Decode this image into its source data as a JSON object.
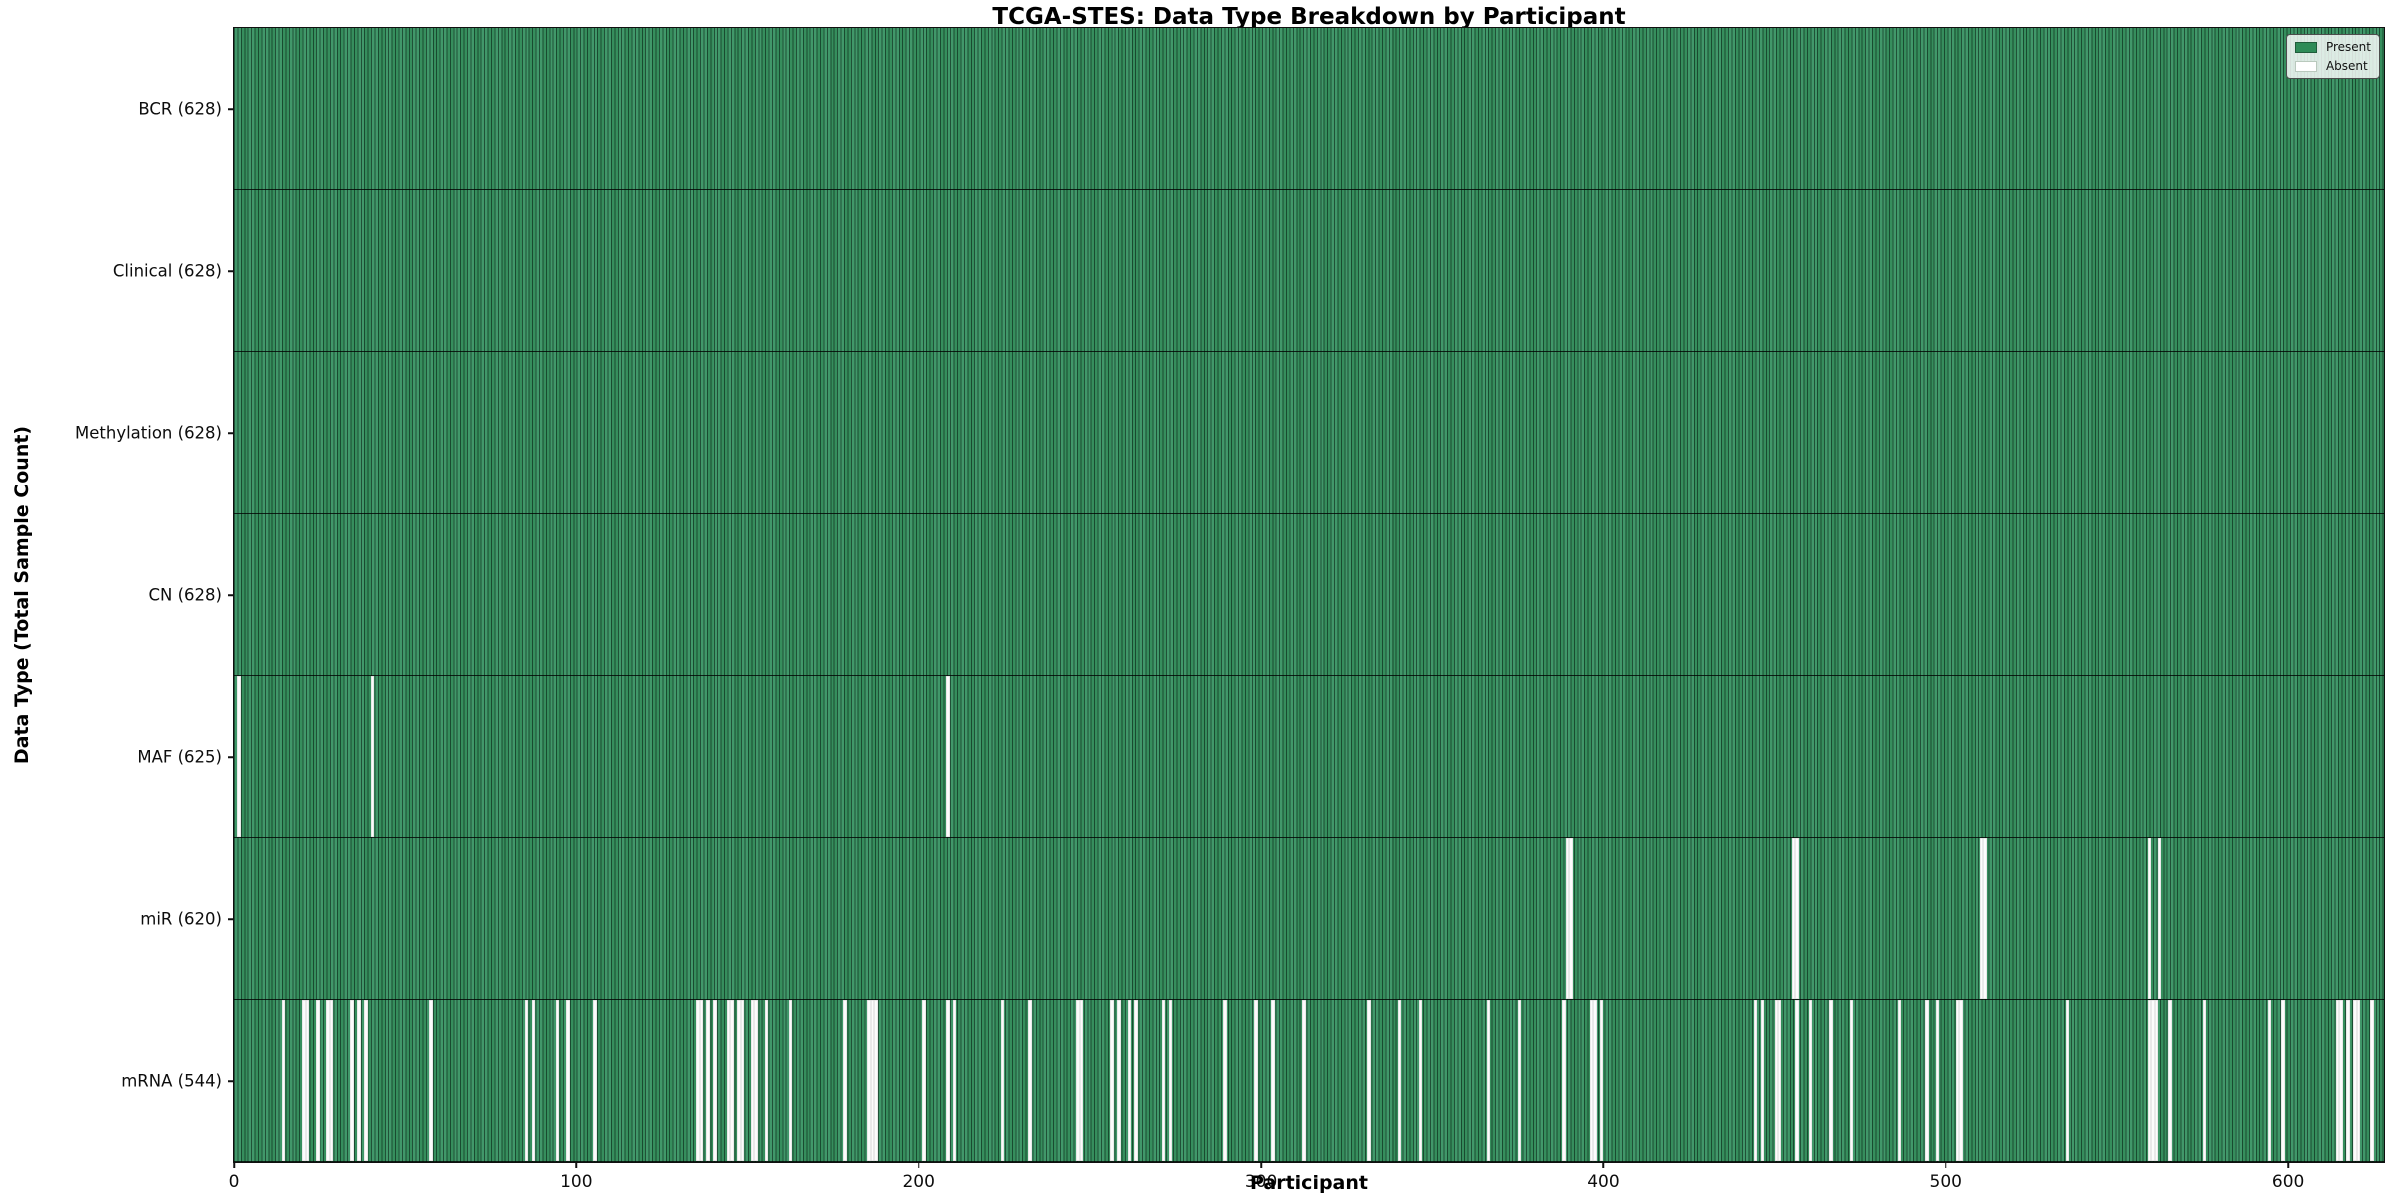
{
  "chart_data": {
    "type": "heatmap",
    "title": "TCGA-STES: Data Type Breakdown by Participant",
    "xlabel": "Participant",
    "ylabel": "Data Type (Total Sample Count)",
    "x_ticks": [
      0,
      100,
      200,
      300,
      400,
      500,
      600
    ],
    "x_range": [
      0,
      628
    ],
    "n_participants": 628,
    "grid": false,
    "legend_position": "upper right",
    "legend": [
      {
        "label": "Present",
        "color": "#2e8b57",
        "swatch_class": "present"
      },
      {
        "label": "Absent",
        "color": "#ffffff",
        "swatch_class": "absent"
      }
    ],
    "colors": {
      "present": "#2e8b57",
      "absent": "#ffffff",
      "bar_edge": "#1c3f2b"
    },
    "rows": [
      {
        "name": "bcr",
        "label": "BCR (628)",
        "present_count": 628,
        "absent_participants": []
      },
      {
        "name": "clinical",
        "label": "Clinical (628)",
        "present_count": 628,
        "absent_participants": []
      },
      {
        "name": "methylation",
        "label": "Methylation (628)",
        "present_count": 628,
        "absent_participants": []
      },
      {
        "name": "cn",
        "label": "CN (628)",
        "present_count": 628,
        "absent_participants": []
      },
      {
        "name": "maf",
        "label": "MAF (625)",
        "present_count": 625,
        "absent_participants": [
          1,
          40,
          208
        ]
      },
      {
        "name": "mir",
        "label": "miR (620)",
        "present_count": 620,
        "absent_participants": [
          389,
          390,
          455,
          456,
          510,
          511,
          559,
          562
        ]
      },
      {
        "name": "mrna",
        "label": "mRNA (544)",
        "present_count": 544,
        "absent_participants": [
          14,
          20,
          21,
          24,
          27,
          28,
          34,
          36,
          38,
          57,
          85,
          87,
          94,
          97,
          105,
          135,
          136,
          138,
          140,
          144,
          145,
          147,
          148,
          151,
          152,
          155,
          162,
          178,
          185,
          186,
          187,
          201,
          208,
          210,
          224,
          232,
          246,
          247,
          256,
          258,
          261,
          263,
          271,
          273,
          289,
          298,
          303,
          312,
          331,
          340,
          346,
          366,
          375,
          388,
          396,
          397,
          399,
          444,
          446,
          450,
          451,
          456,
          460,
          466,
          472,
          486,
          494,
          497,
          503,
          504,
          535,
          559,
          560,
          561,
          565,
          575,
          594,
          598,
          614,
          615,
          617,
          619,
          620,
          624
        ]
      }
    ]
  }
}
